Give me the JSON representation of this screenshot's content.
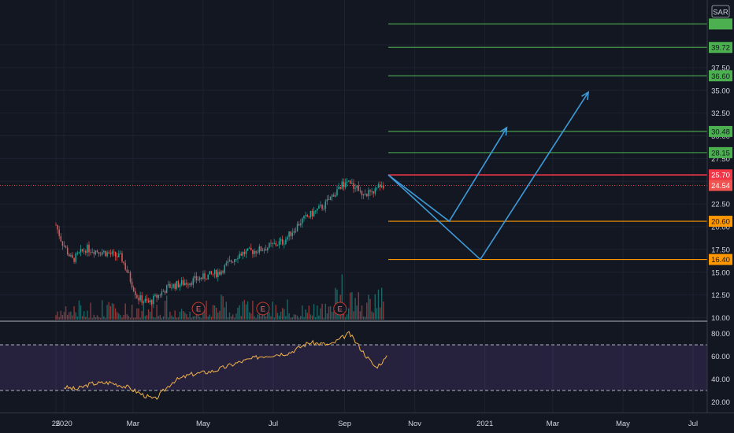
{
  "symbol": {
    "currency": "SAR"
  },
  "chart_data": [
    {
      "type": "candlestick",
      "panel": "price",
      "y_axis": {
        "range": [
          10,
          42.5
        ],
        "ticks": [
          "10.00",
          "12.50",
          "15.00",
          "17.50",
          "20.00",
          "22.50",
          "25.00",
          "27.50",
          "30.00",
          "32.50",
          "35.00",
          "37.50",
          "40.00"
        ]
      },
      "x_axis": {
        "ticks": [
          "25",
          "2020",
          "Mar",
          "May",
          "Jul",
          "Sep",
          "Nov",
          "2021",
          "Mar",
          "May",
          "Jul"
        ]
      },
      "close_path": [
        {
          "date": "2019-12-25",
          "close": 20.2
        },
        {
          "date": "2019-12-30",
          "close": 18.4
        },
        {
          "date": "2020-01-08",
          "close": 16.3
        },
        {
          "date": "2020-01-20",
          "close": 17.6
        },
        {
          "date": "2020-02-05",
          "close": 17.2
        },
        {
          "date": "2020-02-20",
          "close": 16.6
        },
        {
          "date": "2020-03-05",
          "close": 12.2
        },
        {
          "date": "2020-03-15",
          "close": 11.6
        },
        {
          "date": "2020-04-01",
          "close": 13.4
        },
        {
          "date": "2020-04-20",
          "close": 14.0
        },
        {
          "date": "2020-05-15",
          "close": 15.0
        },
        {
          "date": "2020-06-01",
          "close": 17.0
        },
        {
          "date": "2020-06-20",
          "close": 17.5
        },
        {
          "date": "2020-07-10",
          "close": 18.4
        },
        {
          "date": "2020-07-25",
          "close": 20.6
        },
        {
          "date": "2020-08-15",
          "close": 22.4
        },
        {
          "date": "2020-08-28",
          "close": 24.5
        },
        {
          "date": "2020-09-05",
          "close": 25.0
        },
        {
          "date": "2020-09-20",
          "close": 23.5
        },
        {
          "date": "2020-10-05",
          "close": 24.6
        }
      ],
      "current_price": {
        "value": 24.54,
        "label": "24.54",
        "color": "#ef5350"
      },
      "horizontal_levels": [
        {
          "value": 42.3,
          "label": "",
          "color": "#4caf50"
        },
        {
          "value": 39.72,
          "label": "39.72",
          "color": "#4caf50"
        },
        {
          "value": 36.6,
          "label": "36.60",
          "color": "#4caf50"
        },
        {
          "value": 30.48,
          "label": "30.48",
          "color": "#4caf50"
        },
        {
          "value": 28.15,
          "label": "28.15",
          "color": "#4caf50"
        },
        {
          "value": 25.7,
          "label": "25.70",
          "color": "#f23645"
        },
        {
          "value": 20.6,
          "label": "20.60",
          "color": "#ff9800"
        },
        {
          "value": 16.4,
          "label": "16.40",
          "color": "#ff9800"
        }
      ],
      "projections": [
        {
          "points": [
            {
              "date": "2020-10-09",
              "price": 25.7
            },
            {
              "date": "2020-12-01",
              "price": 20.6
            },
            {
              "date": "2021-01-20",
              "price": 30.9
            }
          ]
        },
        {
          "points": [
            {
              "date": "2020-10-09",
              "price": 25.7
            },
            {
              "date": "2020-12-28",
              "price": 16.4
            },
            {
              "date": "2021-04-01",
              "price": 34.8
            }
          ]
        }
      ],
      "earnings_markers": [
        {
          "date": "2020-04-27",
          "label": "E"
        },
        {
          "date": "2020-06-22",
          "label": "E"
        },
        {
          "date": "2020-08-28",
          "label": "E"
        }
      ],
      "volume": {
        "color_up": "#26a69a",
        "color_down": "#ef5350"
      }
    },
    {
      "type": "line",
      "panel": "indicator",
      "y_axis": {
        "range": [
          15,
          85
        ],
        "ticks": [
          "20.00",
          "40.00",
          "60.00",
          "80.00"
        ]
      },
      "band": {
        "upper": 70,
        "lower": 30,
        "fill": "#7e57c2"
      },
      "series_color": "#f0b04a",
      "points": [
        {
          "date": "2020-01-01",
          "value": 33
        },
        {
          "date": "2020-01-12",
          "value": 31
        },
        {
          "date": "2020-01-25",
          "value": 36
        },
        {
          "date": "2020-02-10",
          "value": 37
        },
        {
          "date": "2020-02-25",
          "value": 33
        },
        {
          "date": "2020-03-10",
          "value": 26
        },
        {
          "date": "2020-03-20",
          "value": 22
        },
        {
          "date": "2020-04-05",
          "value": 38
        },
        {
          "date": "2020-04-20",
          "value": 44
        },
        {
          "date": "2020-05-10",
          "value": 47
        },
        {
          "date": "2020-05-30",
          "value": 54
        },
        {
          "date": "2020-06-20",
          "value": 60
        },
        {
          "date": "2020-07-15",
          "value": 63
        },
        {
          "date": "2020-08-01",
          "value": 72
        },
        {
          "date": "2020-08-20",
          "value": 70
        },
        {
          "date": "2020-09-05",
          "value": 80
        },
        {
          "date": "2020-09-20",
          "value": 60
        },
        {
          "date": "2020-09-28",
          "value": 50
        },
        {
          "date": "2020-10-09",
          "value": 60
        }
      ]
    }
  ]
}
